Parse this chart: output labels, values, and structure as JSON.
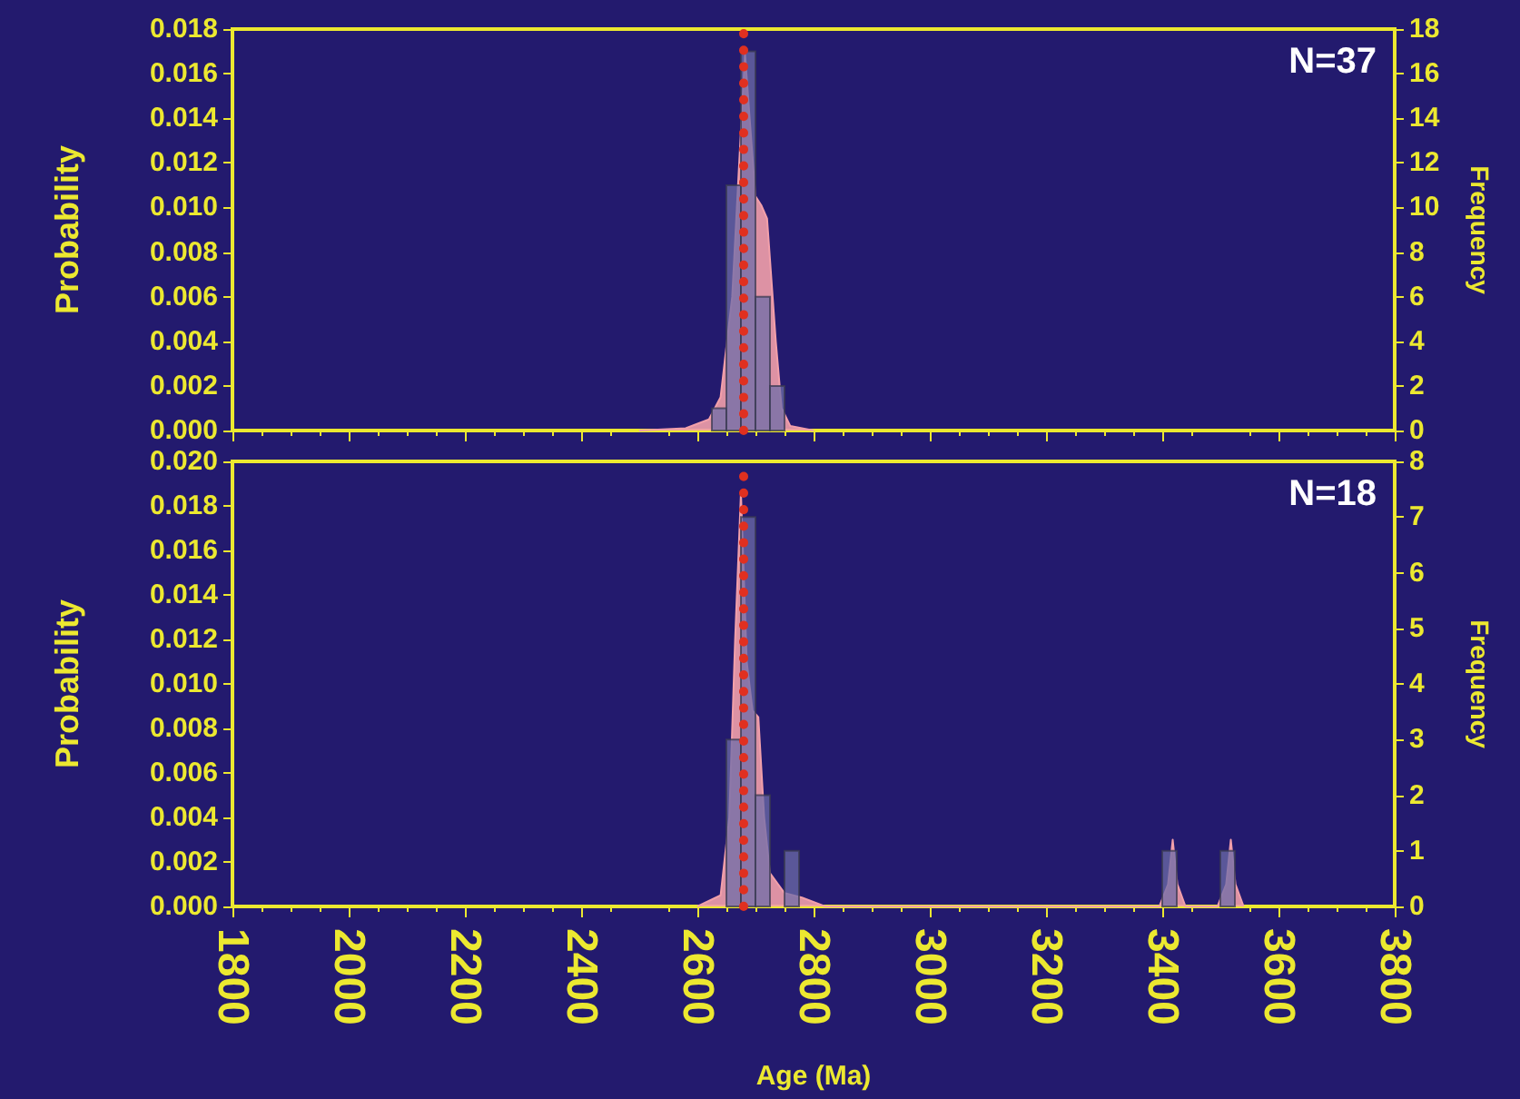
{
  "chart_data": [
    {
      "type": "histogram",
      "ylabel": "Probability",
      "y2label": "Frequency",
      "annotations": [
        "N=37"
      ],
      "tick_labels": "y",
      "grid": false,
      "bins": [
        2625,
        2650,
        2675,
        2700,
        2725,
        2750
      ],
      "series": [
        {
          "type": "area",
          "color": "#f2a0aa",
          "x": [
            2500,
            2580,
            2620,
            2640,
            2660,
            2670,
            2682,
            2690,
            2700,
            2710,
            2720,
            2735,
            2745,
            2760,
            2800
          ],
          "values": [
            0,
            0.0001,
            0.0005,
            0.0015,
            0.006,
            0.011,
            0.0169,
            0.014,
            0.0105,
            0.0101,
            0.0095,
            0.004,
            0.001,
            0.0002,
            0
          ]
        },
        {
          "axis": "y2",
          "color": "#6e6ca8",
          "values": [
            1,
            11,
            17,
            6,
            2
          ]
        }
      ],
      "xlim": [
        1800,
        3800
      ],
      "xticks": [
        1800,
        2000,
        2200,
        2400,
        2600,
        2800,
        3000,
        3200,
        3400,
        3600,
        3800
      ],
      "ylim": [
        0,
        0.018
      ],
      "yticks": [
        {
          "value": 0,
          "label": "0.000"
        },
        {
          "value": 0.002,
          "label": "0.002"
        },
        {
          "value": 0.004,
          "label": "0.004"
        },
        {
          "value": 0.006,
          "label": "0.006"
        },
        {
          "value": 0.008,
          "label": "0.008"
        },
        {
          "value": 0.01,
          "label": "0.010"
        },
        {
          "value": 0.012,
          "label": "0.012"
        },
        {
          "value": 0.014,
          "label": "0.014"
        },
        {
          "value": 0.016,
          "label": "0.016"
        },
        {
          "value": 0.018,
          "label": "0.018"
        }
      ],
      "y2lim": [
        0,
        18
      ],
      "y2ticks": [
        0,
        2,
        4,
        6,
        8,
        10,
        12,
        14,
        16,
        18
      ],
      "ref_lines": [
        {
          "axis": "x",
          "value": 2680,
          "color": "#e03020",
          "line_style": "dotted"
        }
      ]
    },
    {
      "type": "histogram",
      "xlabel": "Age (Ma)",
      "ylabel": "Probability",
      "y2label": "Frequency",
      "annotations": [
        "N=18"
      ],
      "grid": false,
      "bins": [
        2650,
        2675,
        2700,
        2725,
        2750,
        2775,
        2800,
        2825,
        2850,
        2875,
        2900,
        2925,
        2950,
        2975,
        3000,
        3025,
        3050,
        3075,
        3100,
        3125,
        3150,
        3175,
        3200,
        3225,
        3250,
        3275,
        3300,
        3325,
        3350,
        3375,
        3400,
        3425,
        3450,
        3475,
        3500,
        3525
      ],
      "series": [
        {
          "type": "area",
          "color": "#f2a0aa",
          "x": [
            2600,
            2640,
            2655,
            2665,
            2675,
            2685,
            2695,
            2705,
            2715,
            2725,
            2750,
            2780,
            2820,
            3395,
            3410,
            3418,
            3426,
            3440,
            3495,
            3510,
            3518,
            3526,
            3540
          ],
          "values": [
            0,
            0.0005,
            0.004,
            0.012,
            0.0186,
            0.011,
            0.0088,
            0.0085,
            0.004,
            0.0015,
            0.0006,
            0.0004,
            0,
            0,
            0.001,
            0.003,
            0.001,
            0,
            0,
            0.001,
            0.003,
            0.001,
            0
          ]
        },
        {
          "axis": "y2",
          "color": "#6e6ca8",
          "values": [
            3,
            7,
            2,
            0,
            1,
            0,
            0,
            0,
            0,
            0,
            0,
            0,
            0,
            0,
            0,
            0,
            0,
            0,
            0,
            0,
            0,
            0,
            0,
            0,
            0,
            0,
            0,
            0,
            0,
            0,
            1,
            0,
            0,
            0,
            1
          ]
        }
      ],
      "xlim": [
        1800,
        3800
      ],
      "xticks": [
        1800,
        2000,
        2200,
        2400,
        2600,
        2800,
        3000,
        3200,
        3400,
        3600,
        3800
      ],
      "ylim": [
        0,
        0.02
      ],
      "yticks": [
        {
          "value": 0,
          "label": "0.000"
        },
        {
          "value": 0.002,
          "label": "0.002"
        },
        {
          "value": 0.004,
          "label": "0.004"
        },
        {
          "value": 0.006,
          "label": "0.006"
        },
        {
          "value": 0.008,
          "label": "0.008"
        },
        {
          "value": 0.01,
          "label": "0.010"
        },
        {
          "value": 0.012,
          "label": "0.012"
        },
        {
          "value": 0.014,
          "label": "0.014"
        },
        {
          "value": 0.016,
          "label": "0.016"
        },
        {
          "value": 0.018,
          "label": "0.018"
        },
        {
          "value": 0.02,
          "label": "0.020"
        }
      ],
      "y2lim": [
        0,
        8
      ],
      "y2ticks": [
        0,
        1,
        2,
        3,
        4,
        5,
        6,
        7,
        8
      ],
      "ref_lines": [
        {
          "axis": "x",
          "value": 2680,
          "color": "#e03020",
          "line_style": "dotted"
        }
      ]
    }
  ]
}
